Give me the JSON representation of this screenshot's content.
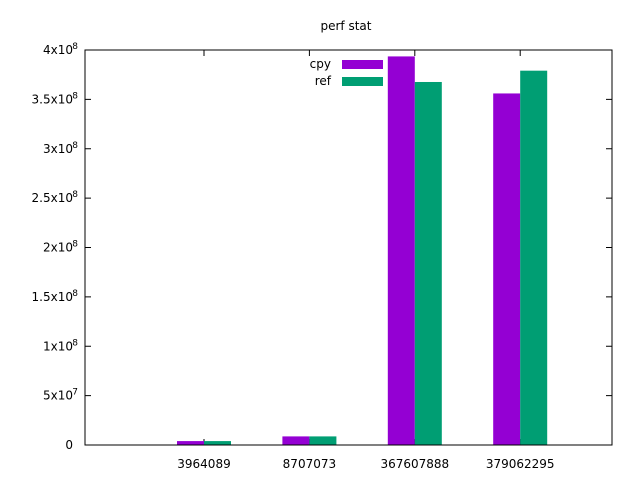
{
  "chart_data": {
    "type": "bar",
    "title": "perf stat",
    "xlabel": "",
    "ylabel": "",
    "categories": [
      "3964089",
      "8707073",
      "367607888",
      "379062295"
    ],
    "series": [
      {
        "name": "cpy",
        "values": [
          3964089,
          8707073,
          393500000,
          356000000
        ]
      },
      {
        "name": "ref",
        "values": [
          3964089,
          8707073,
          367607888,
          379062295
        ]
      }
    ],
    "ylim": [
      0,
      400000000
    ],
    "yticks": [
      {
        "value": 0,
        "base": "0",
        "exp": ""
      },
      {
        "value": 50000000,
        "base": "5x10",
        "exp": "7"
      },
      {
        "value": 100000000,
        "base": "1x10",
        "exp": "8"
      },
      {
        "value": 150000000,
        "base": "1.5x10",
        "exp": "8"
      },
      {
        "value": 200000000,
        "base": "2x10",
        "exp": "8"
      },
      {
        "value": 250000000,
        "base": "2.5x10",
        "exp": "8"
      },
      {
        "value": 300000000,
        "base": "3x10",
        "exp": "8"
      },
      {
        "value": 350000000,
        "base": "3.5x10",
        "exp": "8"
      },
      {
        "value": 400000000,
        "base": "4x10",
        "exp": "8"
      }
    ],
    "grid": false,
    "legend_position": "top-center",
    "colors": {
      "cpy": "#9400d3",
      "ref": "#009e73"
    }
  }
}
